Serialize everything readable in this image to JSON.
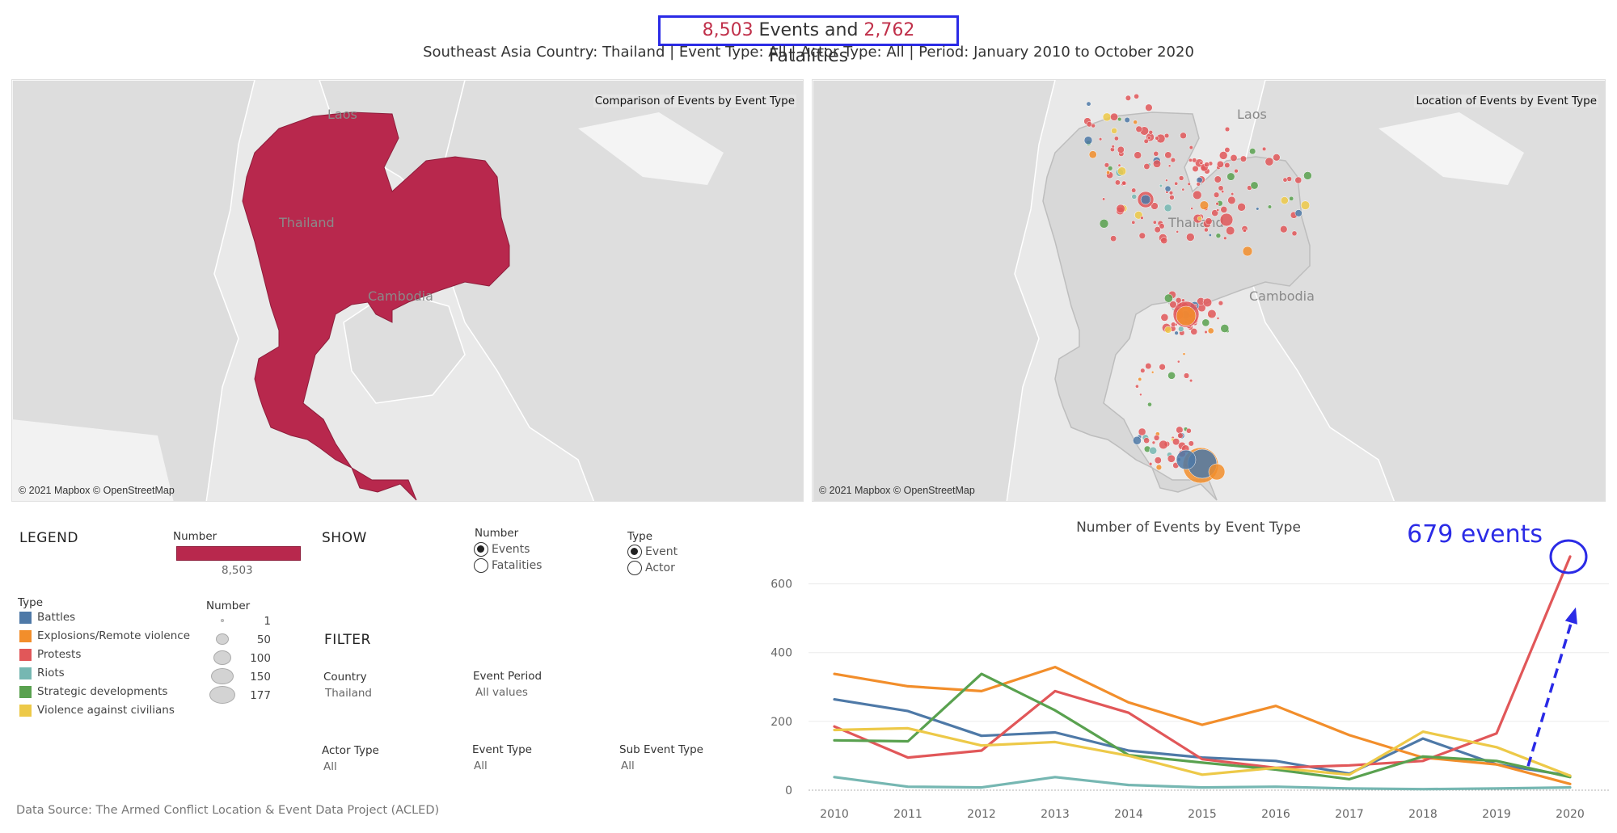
{
  "header": {
    "events_count": "8,503",
    "events_word": " Events and ",
    "fatalities_count": "2,762",
    "fatalities_word": " Fatalities",
    "subtitle": "Southeast Asia Country: Thailand | Event Type: All | Actor Type: All | Period: January 2010 to October 2020"
  },
  "map_left": {
    "caption": "Comparison of Events by Event Type",
    "attribution": "© 2021 Mapbox © OpenStreetMap",
    "labels": [
      "Laos",
      "Thailand",
      "Cambodia"
    ],
    "fill_color": "#b8284d"
  },
  "map_right": {
    "caption": "Location of Events by Event Type",
    "attribution": "© 2021 Mapbox © OpenStreetMap",
    "labels": [
      "Laos",
      "Thailand",
      "Cambodia"
    ]
  },
  "legend": {
    "title": "LEGEND",
    "number_label": "Number",
    "number_value": "8,503",
    "type_label": "Type",
    "types": [
      {
        "name": "Battles",
        "color": "#4e79a7"
      },
      {
        "name": "Explosions/Remote violence",
        "color": "#f28e2b"
      },
      {
        "name": "Protests",
        "color": "#e15759"
      },
      {
        "name": "Riots",
        "color": "#76b7b2"
      },
      {
        "name": "Strategic developments",
        "color": "#59a14f"
      },
      {
        "name": "Violence against civilians",
        "color": "#edc948"
      }
    ],
    "size_label": "Number",
    "sizes": [
      "1",
      "50",
      "100",
      "150",
      "177"
    ]
  },
  "show": {
    "title": "SHOW",
    "number_label": "Number",
    "number_options": [
      "Events",
      "Fatalities"
    ],
    "number_selected": 0,
    "type_label": "Type",
    "type_options": [
      "Event",
      "Actor"
    ],
    "type_selected": 0
  },
  "filter": {
    "title": "FILTER",
    "country_label": "Country",
    "country_value": "Thailand",
    "period_label": "Event Period",
    "period_value": "All values",
    "actor_type_label": "Actor Type",
    "actor_type_value": "All",
    "event_type_label": "Event Type",
    "event_type_value": "All",
    "sub_event_type_label": "Sub Event Type",
    "sub_event_type_value": "All"
  },
  "source": "Data Source: The Armed Conflict Location & Event Data Project (ACLED)",
  "chart_data": {
    "type": "line",
    "title": "Number of Events by Event Type",
    "x": [
      "2010",
      "2011",
      "2012",
      "2013",
      "2014",
      "2015",
      "2016",
      "2017",
      "2018",
      "2019",
      "2020"
    ],
    "ylim": [
      0,
      700
    ],
    "yticks": [
      "0",
      "200",
      "400",
      "600"
    ],
    "grid": true,
    "annotation": "679 events",
    "series": [
      {
        "name": "Battles",
        "color": "#4e79a7",
        "values": [
          264,
          230,
          158,
          168,
          115,
          95,
          85,
          48,
          150,
          75,
          42
        ]
      },
      {
        "name": "Explosions/Remote violence",
        "color": "#f28e2b",
        "values": [
          338,
          302,
          288,
          358,
          255,
          190,
          245,
          160,
          95,
          75,
          18
        ]
      },
      {
        "name": "Protests",
        "color": "#e15759",
        "values": [
          185,
          95,
          115,
          288,
          225,
          90,
          65,
          72,
          85,
          165,
          679
        ]
      },
      {
        "name": "Riots",
        "color": "#76b7b2",
        "values": [
          38,
          10,
          8,
          38,
          15,
          8,
          10,
          5,
          3,
          5,
          8
        ]
      },
      {
        "name": "Strategic developments",
        "color": "#59a14f",
        "values": [
          145,
          142,
          338,
          232,
          102,
          80,
          60,
          32,
          98,
          85,
          38
        ]
      },
      {
        "name": "Violence against civilians",
        "color": "#edc948",
        "values": [
          175,
          180,
          130,
          140,
          100,
          45,
          65,
          45,
          170,
          125,
          42
        ]
      }
    ]
  }
}
